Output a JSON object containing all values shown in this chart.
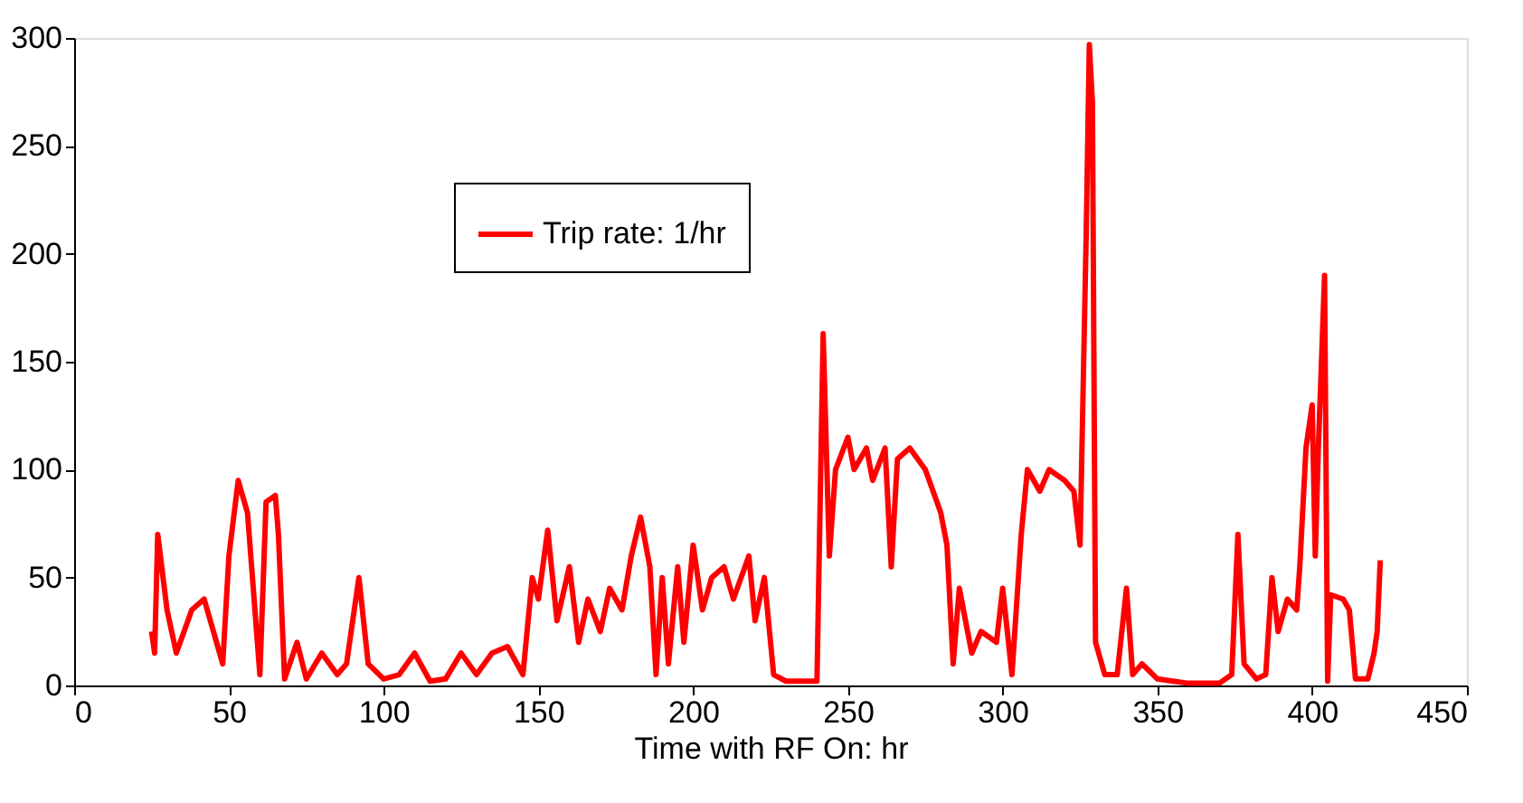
{
  "chart_data": {
    "type": "line",
    "xlabel": "Time with RF On: hr",
    "xlim": [
      0,
      450
    ],
    "xticks": [
      0,
      50,
      100,
      150,
      200,
      250,
      300,
      350,
      400,
      450
    ],
    "ylim": [
      0,
      300
    ],
    "yticks": [
      0,
      50,
      100,
      150,
      200,
      250,
      300
    ],
    "grid": false,
    "legend": "top left",
    "line_style": "solid",
    "marker": "none",
    "series": [
      {
        "name": "Trip rate: 1/hr",
        "color": "#ff0000",
        "x": [
          25,
          26,
          27,
          30,
          33,
          38,
          42,
          45,
          48,
          50,
          53,
          56,
          60,
          62,
          65,
          66,
          68,
          72,
          75,
          80,
          85,
          88,
          92,
          95,
          100,
          105,
          110,
          115,
          120,
          125,
          130,
          135,
          140,
          145,
          148,
          150,
          153,
          156,
          160,
          163,
          166,
          170,
          173,
          177,
          180,
          183,
          186,
          188,
          190,
          192,
          195,
          197,
          200,
          203,
          206,
          210,
          213,
          218,
          220,
          223,
          226,
          230,
          240,
          242,
          244,
          246,
          250,
          252,
          256,
          258,
          262,
          264,
          266,
          270,
          275,
          280,
          282,
          284,
          286,
          290,
          293,
          298,
          300,
          303,
          306,
          308,
          312,
          315,
          320,
          323,
          325,
          327,
          328,
          329,
          330,
          333,
          337,
          340,
          342,
          345,
          350,
          355,
          360,
          370,
          374,
          376,
          378,
          382,
          385,
          387,
          389,
          392,
          395,
          396,
          398,
          400,
          401,
          402,
          403,
          404,
          405,
          406,
          410,
          412,
          414,
          418,
          420,
          421,
          422
        ],
        "values": [
          25,
          15,
          70,
          35,
          15,
          35,
          40,
          25,
          10,
          60,
          95,
          80,
          5,
          85,
          88,
          70,
          3,
          20,
          3,
          15,
          5,
          10,
          50,
          10,
          3,
          5,
          15,
          2,
          3,
          15,
          5,
          15,
          18,
          5,
          50,
          40,
          72,
          30,
          55,
          20,
          40,
          25,
          45,
          35,
          60,
          78,
          55,
          5,
          50,
          10,
          55,
          20,
          65,
          35,
          50,
          55,
          40,
          60,
          30,
          50,
          5,
          2,
          2,
          163,
          60,
          100,
          115,
          100,
          110,
          95,
          110,
          55,
          105,
          110,
          100,
          80,
          65,
          10,
          45,
          15,
          25,
          20,
          45,
          5,
          70,
          100,
          90,
          100,
          95,
          90,
          65,
          210,
          297,
          270,
          20,
          5,
          5,
          45,
          5,
          10,
          3,
          2,
          1,
          1,
          5,
          70,
          10,
          3,
          5,
          50,
          25,
          40,
          35,
          55,
          110,
          130,
          60,
          110,
          150,
          190,
          2,
          42,
          40,
          35,
          3,
          3,
          15,
          25,
          58
        ]
      }
    ]
  }
}
